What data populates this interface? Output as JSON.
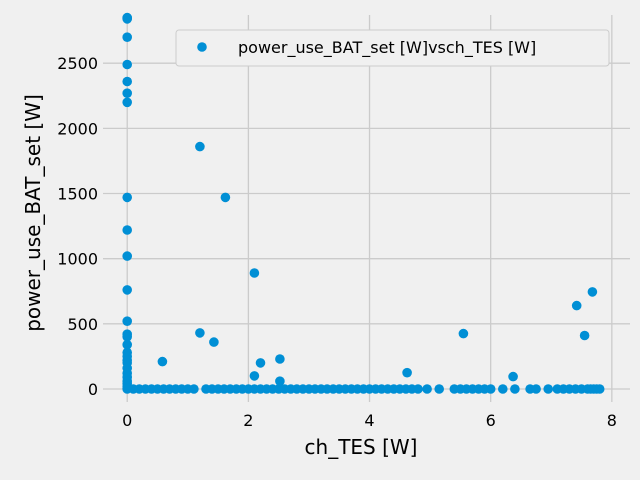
{
  "chart_data": {
    "type": "scatter",
    "xlabel": "ch_TES [W]",
    "ylabel": "power_use_BAT_set [W]",
    "xlim": [
      -0.4,
      8.3
    ],
    "ylim": [
      -100,
      2870
    ],
    "x_ticks": [
      0,
      2,
      4,
      6,
      8
    ],
    "y_ticks": [
      0,
      500,
      1000,
      1500,
      2000,
      2500
    ],
    "grid": true,
    "legend_position": "top-right",
    "series": [
      {
        "name": "power_use_BAT_set [W]vsch_TES [W]",
        "color": "#008fd5",
        "points": [
          [
            0,
            2850
          ],
          [
            0,
            2845
          ],
          [
            0,
            2840
          ],
          [
            0,
            2700
          ],
          [
            0,
            2490
          ],
          [
            0,
            2360
          ],
          [
            0,
            2270
          ],
          [
            0,
            2200
          ],
          [
            0,
            1470
          ],
          [
            0,
            1220
          ],
          [
            0,
            1020
          ],
          [
            0,
            760
          ],
          [
            0,
            520
          ],
          [
            0,
            420
          ],
          [
            0,
            400
          ],
          [
            0,
            340
          ],
          [
            0,
            280
          ],
          [
            0,
            250
          ],
          [
            0,
            220
          ],
          [
            0,
            200
          ],
          [
            0,
            160
          ],
          [
            0,
            120
          ],
          [
            0,
            90
          ],
          [
            0,
            60
          ],
          [
            0,
            40
          ],
          [
            0,
            20
          ],
          [
            0,
            5
          ],
          [
            0,
            0
          ],
          [
            1.2,
            1860
          ],
          [
            1.62,
            1470
          ],
          [
            2.1,
            890
          ],
          [
            1.2,
            430
          ],
          [
            1.43,
            360
          ],
          [
            0.58,
            210
          ],
          [
            2.2,
            200
          ],
          [
            2.52,
            230
          ],
          [
            2.1,
            100
          ],
          [
            2.52,
            60
          ],
          [
            4.62,
            125
          ],
          [
            5.55,
            425
          ],
          [
            6.37,
            95
          ],
          [
            7.42,
            640
          ],
          [
            7.55,
            410
          ],
          [
            7.68,
            745
          ],
          [
            0.1,
            0
          ],
          [
            0.2,
            0
          ],
          [
            0.3,
            0
          ],
          [
            0.4,
            0
          ],
          [
            0.5,
            0
          ],
          [
            0.6,
            0
          ],
          [
            0.7,
            0
          ],
          [
            0.8,
            0
          ],
          [
            0.9,
            0
          ],
          [
            1.0,
            0
          ],
          [
            1.1,
            0
          ],
          [
            1.3,
            0
          ],
          [
            1.4,
            0
          ],
          [
            1.5,
            0
          ],
          [
            1.6,
            0
          ],
          [
            1.7,
            0
          ],
          [
            1.8,
            0
          ],
          [
            1.9,
            0
          ],
          [
            2.0,
            0
          ],
          [
            2.1,
            0
          ],
          [
            2.2,
            0
          ],
          [
            2.3,
            0
          ],
          [
            2.4,
            0
          ],
          [
            2.5,
            0
          ],
          [
            2.6,
            0
          ],
          [
            2.7,
            0
          ],
          [
            2.8,
            0
          ],
          [
            2.9,
            0
          ],
          [
            3.0,
            0
          ],
          [
            3.1,
            0
          ],
          [
            3.2,
            0
          ],
          [
            3.3,
            0
          ],
          [
            3.4,
            0
          ],
          [
            3.5,
            0
          ],
          [
            3.6,
            0
          ],
          [
            3.7,
            0
          ],
          [
            3.8,
            0
          ],
          [
            3.9,
            0
          ],
          [
            4.0,
            0
          ],
          [
            4.1,
            0
          ],
          [
            4.2,
            0
          ],
          [
            4.3,
            0
          ],
          [
            4.4,
            0
          ],
          [
            4.5,
            0
          ],
          [
            4.6,
            0
          ],
          [
            4.7,
            0
          ],
          [
            4.8,
            0
          ],
          [
            4.95,
            0
          ],
          [
            5.15,
            0
          ],
          [
            5.4,
            0
          ],
          [
            5.5,
            0
          ],
          [
            5.6,
            0
          ],
          [
            5.7,
            0
          ],
          [
            5.8,
            0
          ],
          [
            5.9,
            0
          ],
          [
            6.0,
            0
          ],
          [
            6.2,
            0
          ],
          [
            6.4,
            0
          ],
          [
            6.65,
            0
          ],
          [
            6.75,
            0
          ],
          [
            6.95,
            0
          ],
          [
            7.1,
            0
          ],
          [
            7.2,
            0
          ],
          [
            7.3,
            0
          ],
          [
            7.4,
            0
          ],
          [
            7.5,
            0
          ],
          [
            7.6,
            0
          ],
          [
            7.65,
            0
          ],
          [
            7.7,
            0
          ],
          [
            7.75,
            0
          ],
          [
            7.8,
            0
          ]
        ]
      }
    ]
  }
}
